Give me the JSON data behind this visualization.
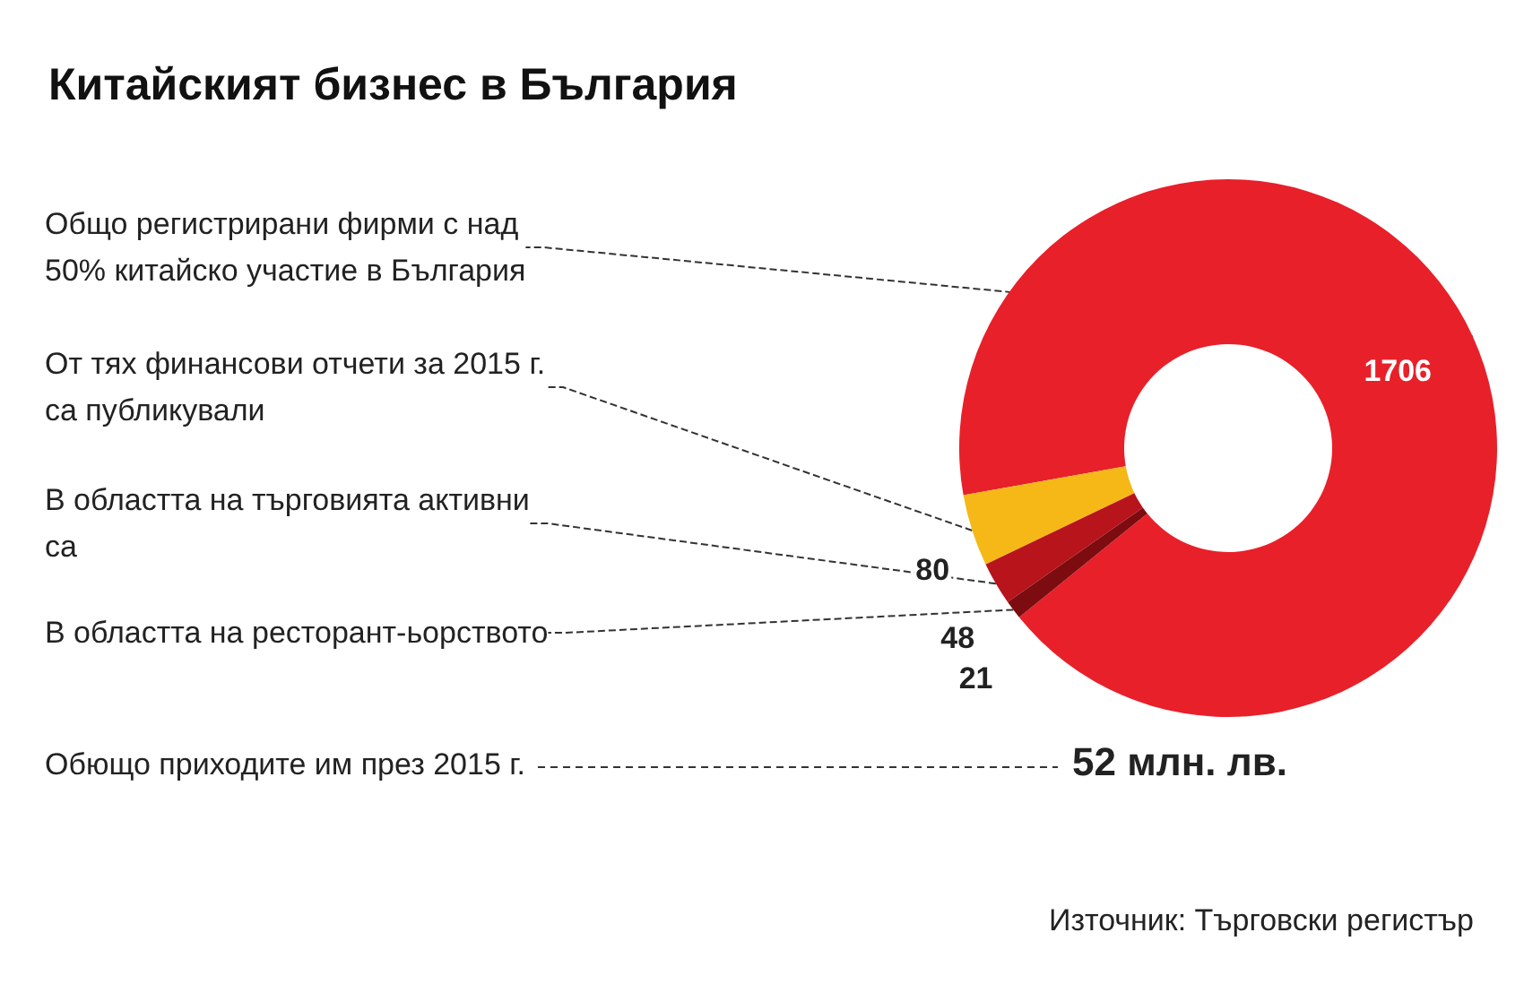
{
  "chart_data": {
    "type": "donut",
    "title": "Китайският бизнес в България",
    "categories": [
      "Общо регистрирани фирми с над 50% китайско участие в България",
      "От тях финансови отчети за 2015 г. са публикували",
      "В областта на търговията активни са",
      "В областта на ресторант-ьорството"
    ],
    "values": [
      1706,
      80,
      48,
      21
    ],
    "colors": [
      "#e8202a",
      "#f6b817",
      "#b8141c",
      "#7d0c10"
    ],
    "data_labels": true,
    "legend": false,
    "annotations": [
      "Обющо приходите им през 2015 г.",
      "52 млн. лв.",
      "Източник: Търговски регистър"
    ]
  }
}
